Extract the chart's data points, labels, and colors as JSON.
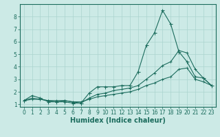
{
  "xlabel": "Humidex (Indice chaleur)",
  "x": [
    0,
    1,
    2,
    3,
    4,
    5,
    6,
    7,
    8,
    9,
    10,
    11,
    12,
    13,
    14,
    15,
    16,
    17,
    18,
    19,
    20,
    21,
    22,
    23
  ],
  "line1": [
    1.3,
    1.7,
    1.5,
    1.2,
    1.2,
    1.2,
    1.1,
    1.1,
    1.9,
    2.4,
    2.4,
    2.4,
    2.5,
    2.5,
    3.6,
    5.7,
    6.7,
    8.5,
    7.4,
    5.2,
    4.4,
    3.2,
    3.1,
    2.5
  ],
  "line2": [
    1.3,
    1.5,
    1.4,
    1.3,
    1.2,
    1.3,
    1.2,
    1.1,
    1.5,
    1.8,
    1.9,
    2.1,
    2.2,
    2.3,
    2.5,
    3.0,
    3.5,
    4.1,
    4.4,
    5.3,
    5.1,
    3.8,
    3.1,
    2.5
  ],
  "line3": [
    1.3,
    1.4,
    1.4,
    1.3,
    1.3,
    1.3,
    1.2,
    1.2,
    1.4,
    1.6,
    1.7,
    1.8,
    1.9,
    2.0,
    2.2,
    2.5,
    2.7,
    3.0,
    3.2,
    3.8,
    3.9,
    3.0,
    2.8,
    2.5
  ],
  "color": "#1a6b5c",
  "bg_color": "#cceae6",
  "grid_color": "#aad4ce",
  "ylim": [
    0.8,
    9.0
  ],
  "xlim": [
    -0.5,
    23.5
  ],
  "yticks": [
    1,
    2,
    3,
    4,
    5,
    6,
    7,
    8
  ],
  "xticks": [
    0,
    1,
    2,
    3,
    4,
    5,
    6,
    7,
    8,
    9,
    10,
    11,
    12,
    13,
    14,
    15,
    16,
    17,
    18,
    19,
    20,
    21,
    22,
    23
  ],
  "tick_fontsize": 5.5,
  "label_fontsize": 7.0,
  "marker_size": 2.0,
  "linewidth": 0.8
}
